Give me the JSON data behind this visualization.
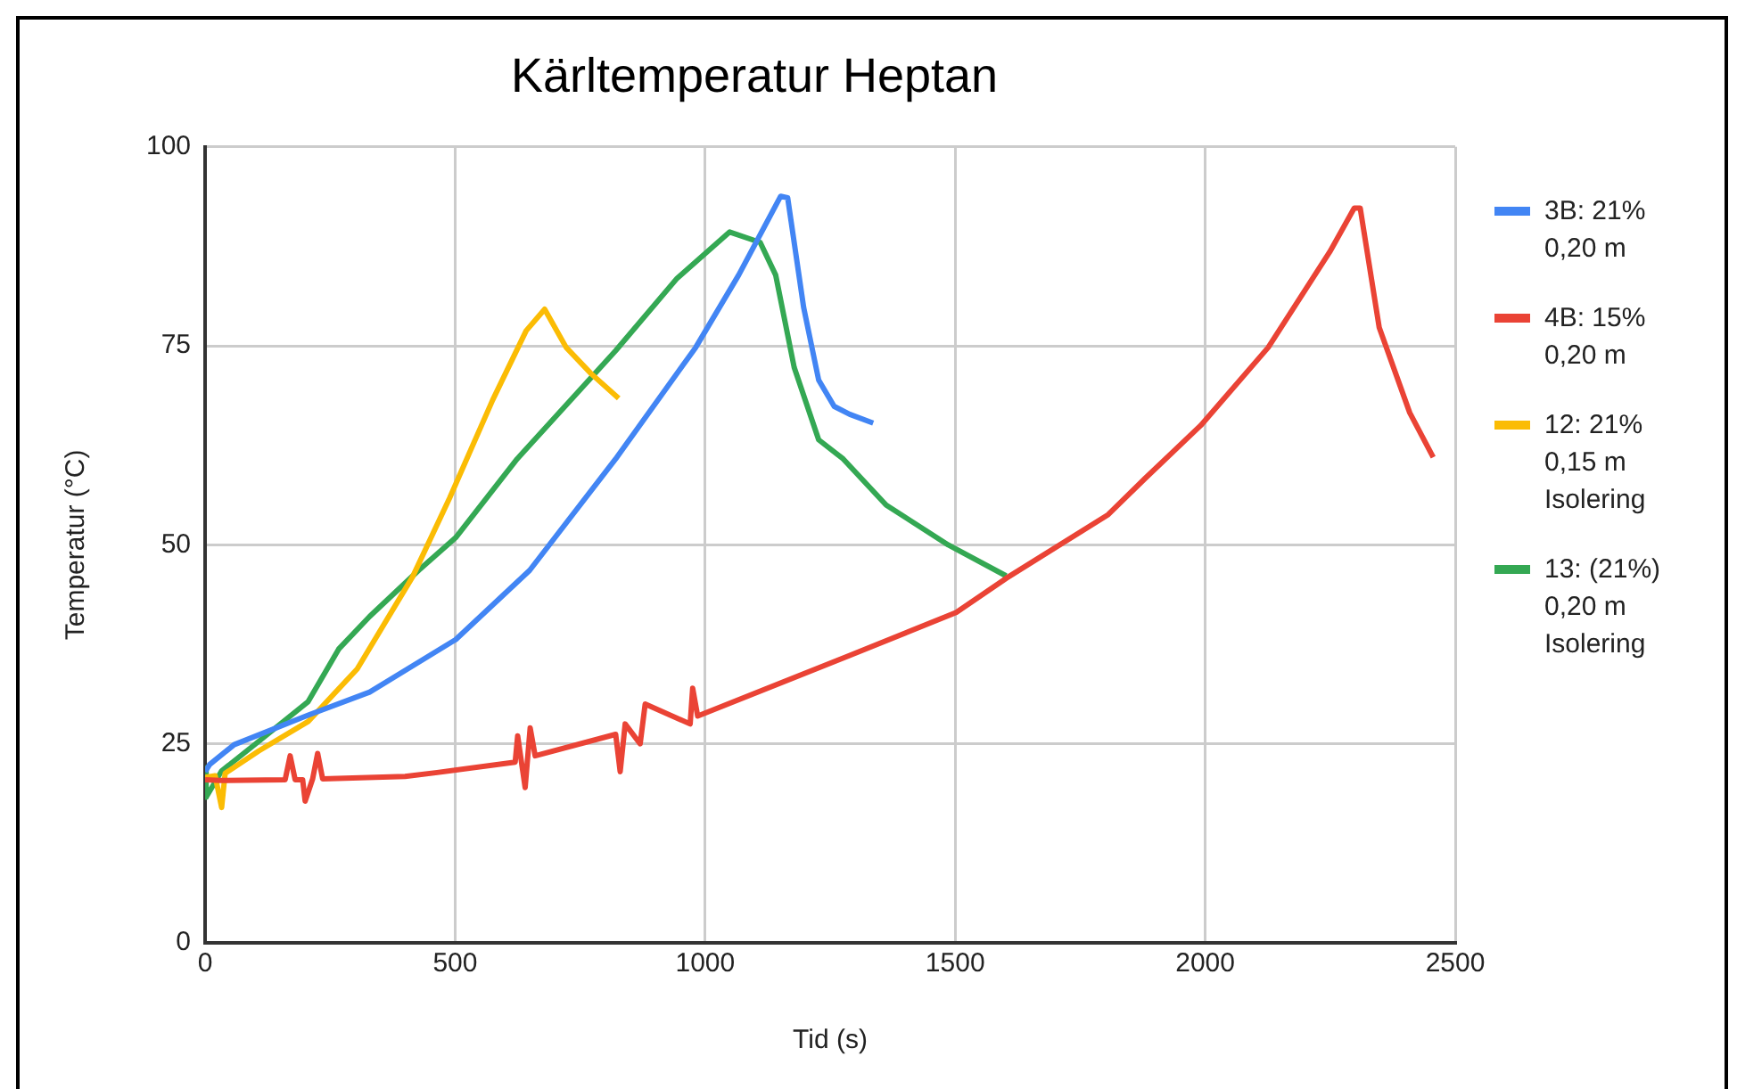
{
  "chart_data": {
    "type": "line",
    "title": "Kärltemperatur Heptan",
    "xlabel": "Tid (s)",
    "ylabel": "Temperatur (°C)",
    "xlim": [
      0,
      2500
    ],
    "xticks": [
      0,
      500,
      1000,
      1500,
      2000,
      2500
    ],
    "ylim": [
      0,
      100
    ],
    "yticks": [
      0,
      25,
      50,
      75,
      100
    ],
    "grid": true,
    "legend": "right",
    "marker": "none",
    "line_style": "solid",
    "series": [
      {
        "name": "3B: 21% 0,20 m",
        "color": "#4285f4",
        "x": [
          0,
          9,
          58,
          206,
          329,
          501,
          649,
          821,
          981,
          1067,
          1151,
          1165,
          1197,
          1227,
          1258,
          1289,
          1336
        ],
        "values": [
          21.5,
          22.4,
          24.9,
          28.6,
          31.5,
          38.1,
          46.8,
          60.8,
          74.8,
          83.9,
          93.8,
          93.6,
          79.8,
          70.7,
          67.4,
          66.4,
          65.3
        ]
      },
      {
        "name": "4B: 15% 0,20 m",
        "color": "#ea4335",
        "x": [
          0,
          30,
          160,
          170,
          180,
          195,
          200,
          215,
          225,
          235,
          400,
          464,
          620,
          625,
          640,
          650,
          660,
          821,
          830,
          840,
          870,
          880,
          970,
          975,
          985,
          1289,
          1502,
          1602,
          1806,
          1879,
          1991,
          2126,
          2249,
          2298,
          2310,
          2348,
          2409,
          2456
        ],
        "values": [
          20.5,
          20.4,
          20.5,
          23.5,
          20.5,
          20.5,
          17.8,
          20.6,
          23.8,
          20.6,
          20.9,
          21.4,
          22.7,
          26,
          19.5,
          27,
          23.5,
          26.2,
          21.5,
          27.5,
          25,
          30,
          27.5,
          32,
          28.5,
          36.1,
          41.5,
          45.8,
          53.8,
          58.3,
          65,
          74.8,
          86.8,
          92.3,
          92.3,
          77.3,
          66.6,
          61
        ]
      },
      {
        "name": "12: 21% 0,15 m Isolering",
        "color": "#fbbc04",
        "x": [
          0,
          20,
          33,
          40,
          107,
          206,
          304,
          415,
          489,
          575,
          642,
          679,
          722,
          772,
          827
        ],
        "values": [
          20.8,
          21,
          17,
          21.3,
          24.1,
          27.8,
          34.4,
          46,
          55.9,
          68.2,
          76.9,
          79.6,
          74.8,
          71.5,
          68.4
        ]
      },
      {
        "name": "13: (21%) 0,20 m Isolering",
        "color": "#34a853",
        "x": [
          0,
          2,
          33,
          107,
          206,
          267,
          329,
          427,
          501,
          624,
          821,
          944,
          1049,
          1110,
          1141,
          1178,
          1227,
          1276,
          1362,
          1486,
          1602
        ],
        "values": [
          22,
          18.3,
          21.6,
          25.3,
          30.3,
          36.9,
          41,
          46.8,
          50.9,
          60.8,
          74.4,
          83.5,
          89.3,
          88,
          83.9,
          72.3,
          63.2,
          60.8,
          55,
          50,
          46.1
        ]
      }
    ]
  }
}
